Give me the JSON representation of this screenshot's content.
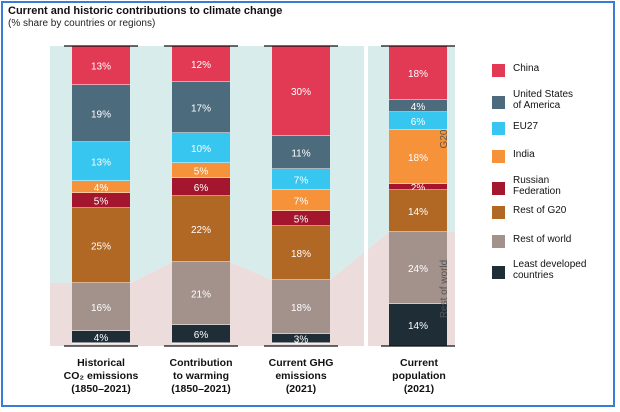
{
  "title": "Current and historic contributions to climate change",
  "subtitle": "(% share by countries or regions)",
  "group_labels": {
    "g20": "G20",
    "rest": "Rest of world"
  },
  "colors": {
    "China": "#e23a54",
    "United States of America": "#4c6b7d",
    "EU27": "#36c6ef",
    "India": "#f6923a",
    "Russian Federation": "#a3162d",
    "Rest of G20": "#b26825",
    "Rest of world": "#a3918c",
    "Least developed countries": "#1f2d37",
    "g20_band": "#d8ecec",
    "rest_band": "#ecdcdc"
  },
  "legend": [
    {
      "key": "China",
      "lines": [
        "China"
      ]
    },
    {
      "key": "United States of America",
      "lines": [
        "United States",
        "of America"
      ]
    },
    {
      "key": "EU27",
      "lines": [
        "EU27"
      ]
    },
    {
      "key": "India",
      "lines": [
        "India"
      ]
    },
    {
      "key": "Russian Federation",
      "lines": [
        "Russian",
        "Federation"
      ]
    },
    {
      "key": "Rest of G20",
      "lines": [
        "Rest of G20"
      ]
    },
    {
      "key": "Rest of world",
      "lines": [
        "Rest of world"
      ]
    },
    {
      "key": "Least developed countries",
      "lines": [
        "Least developed",
        "countries"
      ]
    }
  ],
  "chart_data": {
    "type": "bar",
    "stacked": true,
    "unit": "%",
    "categories": [
      {
        "lines": [
          "Historical",
          "CO₂ emissions",
          "(1850–2021)"
        ]
      },
      {
        "lines": [
          "Contribution",
          "to warming",
          "(1850–2021)"
        ]
      },
      {
        "lines": [
          "Current GHG",
          "emissions",
          "(2021)"
        ]
      },
      {
        "lines": [
          "Current",
          "population",
          "(2021)"
        ]
      }
    ],
    "series": [
      {
        "name": "China",
        "values": [
          13,
          12,
          30,
          18
        ]
      },
      {
        "name": "United States of America",
        "values": [
          19,
          17,
          11,
          4
        ]
      },
      {
        "name": "EU27",
        "values": [
          13,
          10,
          7,
          6
        ]
      },
      {
        "name": "India",
        "values": [
          4,
          5,
          7,
          18
        ]
      },
      {
        "name": "Russian Federation",
        "values": [
          5,
          6,
          5,
          2
        ]
      },
      {
        "name": "Rest of G20",
        "values": [
          25,
          22,
          18,
          14
        ]
      },
      {
        "name": "Rest of world",
        "values": [
          16,
          21,
          18,
          24
        ]
      },
      {
        "name": "Least developed countries",
        "values": [
          4,
          6,
          3,
          14
        ]
      }
    ],
    "ylim": [
      0,
      100
    ],
    "legend_position": "right"
  }
}
